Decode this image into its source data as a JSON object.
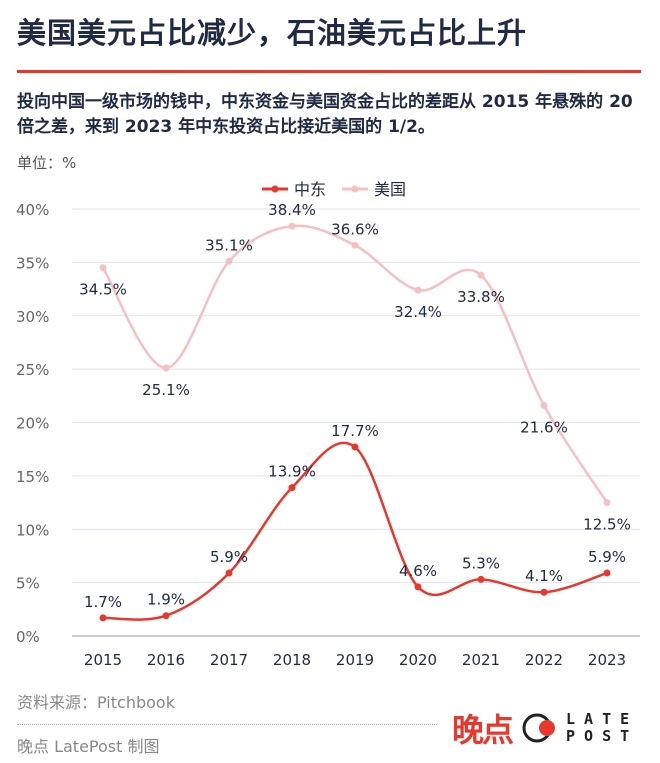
{
  "header": {
    "title": "美国美元占比减少，石油美元占比上升",
    "subtitle": "投向中国一级市场的钱中，中东资金与美国资金占比的差距从 2015 年悬殊的 20 倍之差，来到 2023 年中东投资占比接近美国的 1/2。",
    "unit": "单位：%"
  },
  "chart_data": {
    "type": "line",
    "x": [
      "2015",
      "2016",
      "2017",
      "2018",
      "2019",
      "2020",
      "2021",
      "2022",
      "2023"
    ],
    "ylim": [
      0,
      40
    ],
    "yticks": [
      "0%",
      "5%",
      "10%",
      "15%",
      "20%",
      "25%",
      "30%",
      "35%",
      "40%"
    ],
    "grid": true,
    "legend_position": "top-center",
    "series": [
      {
        "name": "中东",
        "color": "#e8372c",
        "values": [
          1.7,
          1.9,
          5.9,
          13.9,
          17.7,
          4.6,
          5.3,
          4.1,
          5.9
        ],
        "labels": [
          "1.7%",
          "1.9%",
          "5.9%",
          "13.9%",
          "17.7%",
          "4.6%",
          "5.3%",
          "4.1%",
          "5.9%"
        ]
      },
      {
        "name": "美国",
        "color": "#f6c0c0",
        "values": [
          34.5,
          25.1,
          35.1,
          38.4,
          36.6,
          32.4,
          33.8,
          21.6,
          12.5
        ],
        "labels": [
          "34.5%",
          "25.1%",
          "35.1%",
          "38.4%",
          "36.6%",
          "32.4%",
          "33.8%",
          "21.6%",
          "12.5%"
        ]
      }
    ]
  },
  "footer": {
    "source": "资料来源：Pitchbook",
    "credit": "晚点 LatePost 制图",
    "logo_cn": "晚点",
    "logo_en1": "LATE",
    "logo_en2": "POST",
    "watermark": "晚点"
  }
}
